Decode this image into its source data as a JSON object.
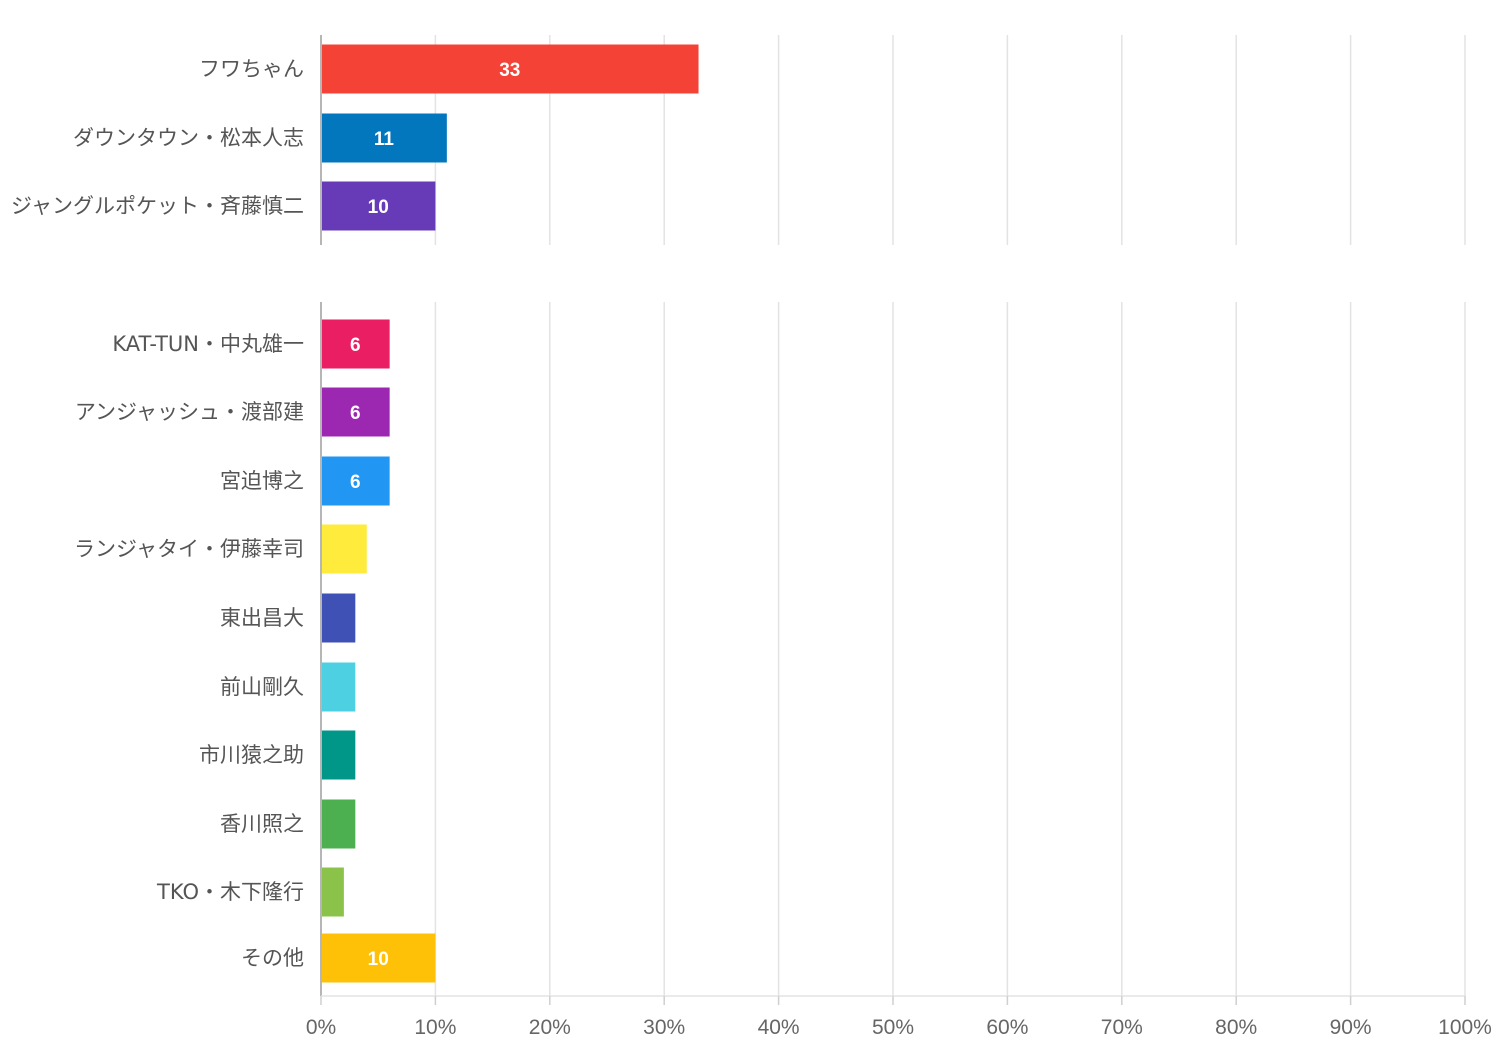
{
  "chart_data": {
    "type": "bar",
    "orientation": "horizontal",
    "x_unit": "%",
    "xlim": [
      0,
      100
    ],
    "x_ticks": [
      "0%",
      "10%",
      "20%",
      "30%",
      "40%",
      "50%",
      "60%",
      "70%",
      "80%",
      "90%",
      "100%"
    ],
    "grid": true,
    "groups": [
      {
        "categories": [
          "フワちゃん",
          "ダウンタウン・松本人志",
          "ジャングルポケット・斉藤慎二"
        ],
        "values": [
          33,
          11,
          10
        ],
        "labels": [
          "33",
          "11",
          "10"
        ],
        "colors": [
          "#f44336",
          "#0277bd",
          "#673ab7"
        ]
      },
      {
        "categories": [
          "KAT-TUN・中丸雄一",
          "アンジャッシュ・渡部建",
          "宮迫博之",
          "ランジャタイ・伊藤幸司",
          "東出昌大",
          "前山剛久",
          "市川猿之助",
          "香川照之",
          "TKO・木下隆行",
          "その他"
        ],
        "values": [
          6,
          6,
          6,
          4,
          3,
          3,
          3,
          3,
          2,
          10
        ],
        "labels": [
          "6",
          "6",
          "6",
          "",
          "",
          "",
          "",
          "",
          "",
          "10"
        ],
        "colors": [
          "#e91e63",
          "#9c27b0",
          "#2196f3",
          "#ffeb3b",
          "#3f51b5",
          "#4dd0e1",
          "#009688",
          "#4caf50",
          "#8bc34a",
          "#ffc107"
        ]
      }
    ]
  }
}
